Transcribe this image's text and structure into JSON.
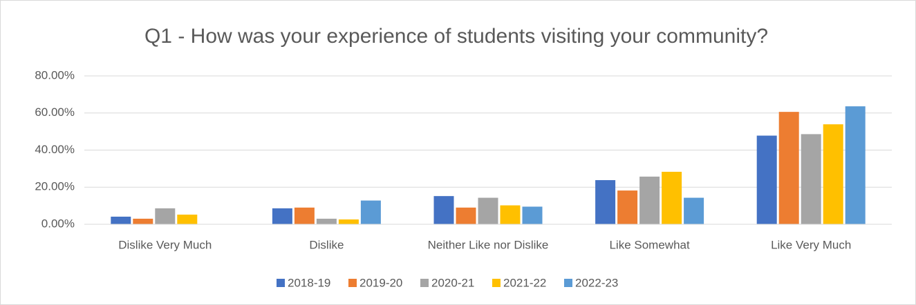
{
  "chart_data": {
    "type": "bar",
    "title": "Q1 - How was your experience of students visiting your community?",
    "categories": [
      "Dislike Very Much",
      "Dislike",
      "Neither Like nor Dislike",
      "Like Somewhat",
      "Like Very Much"
    ],
    "series": [
      {
        "name": "2018-19",
        "color": "#4472c4",
        "values": [
          4.1,
          8.6,
          15.2,
          23.8,
          47.8
        ]
      },
      {
        "name": "2019-20",
        "color": "#ed7d31",
        "values": [
          3.0,
          9.0,
          9.0,
          18.2,
          60.6
        ]
      },
      {
        "name": "2020-21",
        "color": "#a5a5a5",
        "values": [
          8.6,
          3.0,
          14.3,
          25.7,
          48.6
        ]
      },
      {
        "name": "2021-22",
        "color": "#ffc000",
        "values": [
          5.2,
          2.6,
          10.2,
          28.3,
          53.9
        ]
      },
      {
        "name": "2022-23",
        "color": "#5b9bd5",
        "values": [
          0,
          12.8,
          9.5,
          14.3,
          63.6
        ]
      }
    ],
    "ylim": [
      0,
      80
    ],
    "yticks": [
      {
        "value": 0,
        "label": "0.00%"
      },
      {
        "value": 20,
        "label": "20.00%"
      },
      {
        "value": 40,
        "label": "40.00%"
      },
      {
        "value": 60,
        "label": "60.00%"
      },
      {
        "value": 80,
        "label": "80.00%"
      }
    ],
    "grid": true,
    "legend": "bottom"
  }
}
